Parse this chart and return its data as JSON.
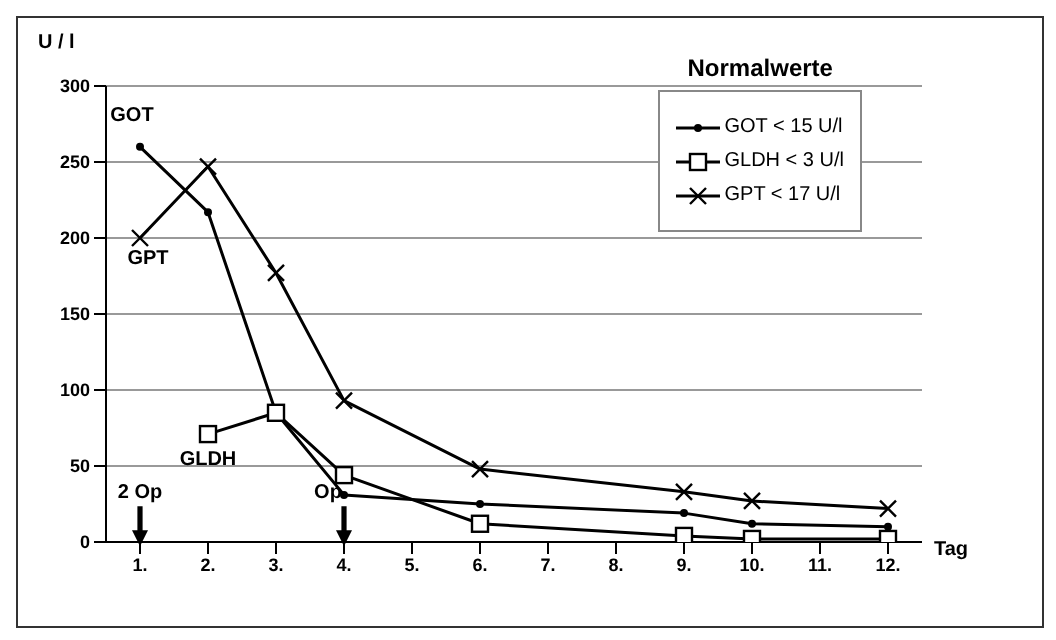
{
  "chart_data": {
    "type": "line",
    "ylabel": "U / l",
    "xlabel": "Tag",
    "legend_title": "Normalwerte",
    "legend": "top right",
    "grid": "y",
    "line_style": "solid",
    "categories": [
      "1.",
      "2.",
      "3.",
      "4.",
      "5.",
      "6.",
      "7.",
      "8.",
      "9.",
      "10.",
      "11.",
      "12."
    ],
    "ylim": [
      0,
      300
    ],
    "yticks": [
      0,
      50,
      100,
      150,
      200,
      250,
      300
    ],
    "series": [
      {
        "name": "GOT < 15 U/l",
        "color": "#000000",
        "marker": "circle",
        "values": [
          260,
          217,
          85,
          31,
          null,
          25,
          null,
          null,
          19,
          12,
          null,
          10
        ]
      },
      {
        "name": "GLDH < 3 U/l",
        "color": "#000000",
        "marker": "square",
        "values": [
          null,
          71,
          85,
          44,
          null,
          12,
          null,
          null,
          4,
          2,
          null,
          2
        ]
      },
      {
        "name": "GPT < 17 U/l",
        "color": "#000000",
        "marker": "cross",
        "values": [
          200,
          247,
          177,
          93,
          null,
          48,
          null,
          null,
          33,
          27,
          null,
          22
        ]
      }
    ],
    "annotations": [
      "GOT",
      "GPT",
      "GLDH",
      "2 Op",
      "Op"
    ]
  }
}
